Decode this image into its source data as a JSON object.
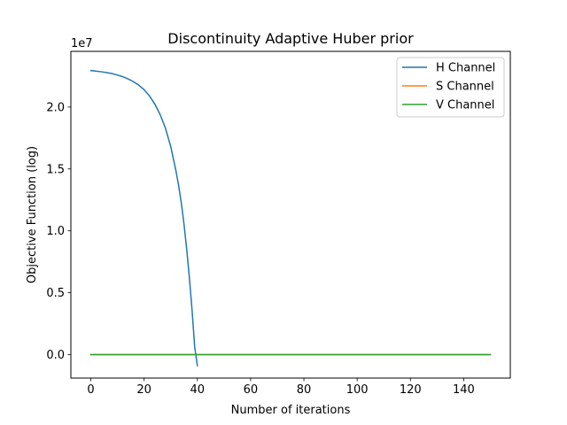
{
  "chart_data": {
    "type": "line",
    "title": "Discontinuity Adaptive Huber prior",
    "xlabel": "Number of iterations",
    "ylabel": "Objective Function (log)",
    "y_multiplier_label": "1e7",
    "xlim": [
      -7.5,
      157.5
    ],
    "ylim": [
      -0.19,
      2.45
    ],
    "xticks": [
      0,
      20,
      40,
      60,
      80,
      100,
      120,
      140
    ],
    "yticks": [
      0.0,
      0.5,
      1.0,
      1.5,
      2.0
    ],
    "ytick_labels": [
      "0.0",
      "0.5",
      "1.0",
      "1.5",
      "2.0"
    ],
    "grid": false,
    "legend_position": "top-right",
    "series": [
      {
        "name": "H Channel",
        "color": "#1f77b4",
        "x": [
          0,
          2,
          4,
          6,
          8,
          10,
          12,
          14,
          16,
          18,
          20,
          22,
          24,
          26,
          28,
          30,
          32,
          33,
          34,
          35,
          36,
          37,
          38,
          39,
          40
        ],
        "y": [
          2.295,
          2.29,
          2.285,
          2.278,
          2.27,
          2.258,
          2.245,
          2.227,
          2.205,
          2.177,
          2.14,
          2.09,
          2.025,
          1.94,
          1.83,
          1.68,
          1.48,
          1.36,
          1.22,
          1.05,
          0.85,
          0.62,
          0.36,
          0.06,
          -0.09
        ]
      },
      {
        "name": "S Channel",
        "color": "#ff7f0e",
        "x": [
          0,
          150
        ],
        "y": [
          0.0,
          0.0
        ]
      },
      {
        "name": "V Channel",
        "color": "#2ca02c",
        "x": [
          0,
          150
        ],
        "y": [
          0.0,
          0.0
        ]
      }
    ]
  }
}
